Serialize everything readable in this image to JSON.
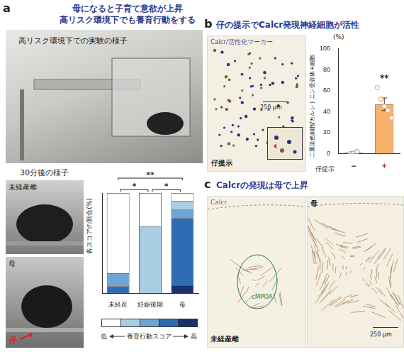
{
  "figure": {
    "a": {
      "label": "a",
      "title": [
        "母になると子育て意欲が上昇",
        "高リスク環境下でも養育行動をする"
      ],
      "photo_caption": "高リスク環境下での実験の様子",
      "after_heading": "30分後の様子",
      "photo_labels": [
        "未経産雌",
        "母"
      ],
      "pup_label": "仔"
    },
    "b": {
      "label": "b",
      "title": "仔の提示でCalcr発現神経細胞が活性",
      "image_label": "Calcr/活性化マーカー",
      "scale_bar": "250 µm",
      "image_caption": "仔提示"
    },
    "c": {
      "label": "c",
      "title": "Calcrの発現は母で上昇",
      "image_label": "Calcr",
      "region": "cMPOA",
      "image_captions": [
        "未経産雌",
        "母"
      ],
      "scale_bar": "250 µm"
    }
  },
  "chart_data": [
    {
      "type": "bar",
      "stacked": true,
      "categories": [
        "未経産",
        "妊娠後期",
        "母"
      ],
      "y_label": "各スコアの割合(%)",
      "ylim": [
        0,
        100
      ],
      "tick_labels": "x",
      "grid": false,
      "series": [
        {
          "color": "#1b2f6b",
          "values": [
            0,
            0,
            8
          ]
        },
        {
          "color": "#2e6db4",
          "values": [
            7,
            0,
            67
          ]
        },
        {
          "color": "#6fa5d3",
          "values": [
            13,
            0,
            9
          ]
        },
        {
          "color": "#a9cde3",
          "values": [
            0,
            67,
            8
          ]
        },
        {
          "color": "#ffffff",
          "values": [
            80,
            33,
            8
          ]
        }
      ],
      "legend_title": "養育行動スコア",
      "legend_low": "低",
      "legend_high": "高",
      "annotations": [
        {
          "text": "**",
          "between": [
            "未経産",
            "母"
          ]
        },
        {
          "text": "*",
          "between": [
            "未経産",
            "妊娠後期"
          ]
        },
        {
          "text": "*",
          "between": [
            "妊娠後期",
            "母"
          ]
        }
      ]
    },
    {
      "type": "bar",
      "categories": [
        "−",
        "+"
      ],
      "x_label": "仔提示",
      "y_label": "二重染色細胞/カルシトニン受容体+細胞",
      "y_unit": "(%)",
      "ylim": [
        0,
        100
      ],
      "yticks": [
        0,
        20,
        40,
        60,
        80,
        100
      ],
      "grid": false,
      "values": [
        1,
        47
      ],
      "errors": [
        1,
        6
      ],
      "points": [
        [
          0,
          0.5,
          2
        ],
        [
          63,
          52,
          45,
          41,
          34
        ]
      ],
      "colors": [
        "#8fb3de",
        "#f6b26b"
      ],
      "annotations": [
        {
          "text": "**",
          "category": "+"
        }
      ]
    }
  ]
}
